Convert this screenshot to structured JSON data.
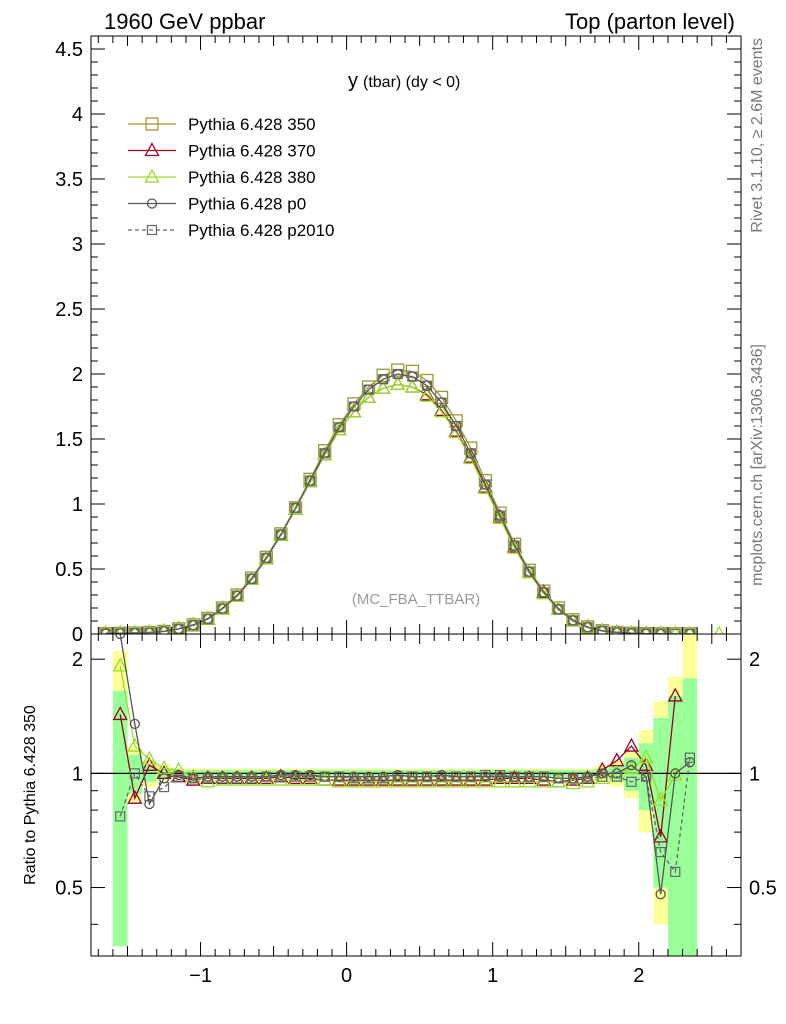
{
  "header": {
    "left": "1960 GeV ppbar",
    "right": "Top (parton level)"
  },
  "side": {
    "rivet": "Rivet 3.1.10, ≥ 2.6M events",
    "mcplots": "mcplots.cern.ch [arXiv:1306.3436]"
  },
  "chart_data": [
    {
      "type": "line",
      "title": "y (tbar) (dy < 0)",
      "title_main": "y",
      "title_rest": "(tbar) (dy < 0)",
      "tag": "(MC_FBA_TTBAR)",
      "xlim": [
        -1.75,
        2.7
      ],
      "ylim": [
        0,
        4.6
      ],
      "yticks": [
        "0",
        "0.5",
        "1",
        "1.5",
        "2",
        "2.5",
        "3",
        "3.5",
        "4",
        "4.5"
      ],
      "grid": false,
      "legend_position": "top-left",
      "x": [
        -1.65,
        -1.55,
        -1.45,
        -1.35,
        -1.25,
        -1.15,
        -1.05,
        -0.95,
        -0.85,
        -0.75,
        -0.65,
        -0.55,
        -0.45,
        -0.35,
        -0.25,
        -0.15,
        -0.05,
        0.05,
        0.15,
        0.25,
        0.35,
        0.45,
        0.55,
        0.65,
        0.75,
        0.85,
        0.95,
        1.05,
        1.15,
        1.25,
        1.35,
        1.45,
        1.55,
        1.65,
        1.75,
        1.85,
        1.95,
        2.05,
        2.15,
        2.25,
        2.35,
        2.45,
        2.55
      ],
      "series": [
        {
          "name": "Pythia 6.428 350",
          "color": "#999933",
          "marker": "square",
          "dash": false,
          "values": [
            0.003,
            0.005,
            0.008,
            0.012,
            0.02,
            0.04,
            0.07,
            0.12,
            0.2,
            0.3,
            0.43,
            0.59,
            0.77,
            0.97,
            1.19,
            1.41,
            1.61,
            1.77,
            1.9,
            1.99,
            2.03,
            2.02,
            1.95,
            1.82,
            1.64,
            1.43,
            1.18,
            0.93,
            0.69,
            0.49,
            0.33,
            0.2,
            0.11,
            0.055,
            0.025,
            0.012,
            0.006,
            0.003,
            0.002,
            0.002,
            0.001,
            null,
            null
          ]
        },
        {
          "name": "Pythia 6.428 370",
          "color": "#990022",
          "marker": "triangle",
          "dash": false,
          "values": [
            0.004,
            0.004,
            0.008,
            0.012,
            0.02,
            0.04,
            0.07,
            0.115,
            0.195,
            0.29,
            0.42,
            0.58,
            0.76,
            0.96,
            1.17,
            1.38,
            1.57,
            1.71,
            1.82,
            1.89,
            1.92,
            1.9,
            1.84,
            1.72,
            1.56,
            1.36,
            1.13,
            0.9,
            0.67,
            0.47,
            0.32,
            0.19,
            0.1,
            0.052,
            0.024,
            0.013,
            0.006,
            0.003,
            0.002,
            0.003,
            null,
            null,
            null
          ]
        },
        {
          "name": "Pythia 6.428 380",
          "color": "#99dd22",
          "marker": "triangle",
          "dash": false,
          "values": [
            0.006,
            0.006,
            0.009,
            0.012,
            0.02,
            0.04,
            0.068,
            0.115,
            0.192,
            0.29,
            0.42,
            0.58,
            0.76,
            0.96,
            1.17,
            1.38,
            1.57,
            1.71,
            1.82,
            1.89,
            1.92,
            1.9,
            1.83,
            1.71,
            1.55,
            1.35,
            1.12,
            0.89,
            0.66,
            0.47,
            0.31,
            0.19,
            0.1,
            0.05,
            0.024,
            0.012,
            0.006,
            0.003,
            0.002,
            0.002,
            0.001,
            null,
            0.001
          ]
        },
        {
          "name": "Pythia 6.428 p0",
          "color": "#555555",
          "marker": "circle",
          "dash": false,
          "values": [
            0.007,
            0.007,
            0.008,
            0.011,
            0.02,
            0.039,
            0.068,
            0.117,
            0.196,
            0.295,
            0.425,
            0.585,
            0.765,
            0.97,
            1.18,
            1.39,
            1.59,
            1.75,
            1.88,
            1.96,
            2.0,
            1.98,
            1.91,
            1.78,
            1.6,
            1.39,
            1.15,
            0.91,
            0.68,
            0.48,
            0.32,
            0.19,
            0.105,
            0.052,
            0.024,
            0.013,
            0.006,
            0.003,
            0.001,
            null,
            0.001,
            null,
            null
          ]
        },
        {
          "name": "Pythia 6.428 p2010",
          "color": "#666666",
          "marker": "square-small",
          "dash": true,
          "values": [
            0.002,
            0.005,
            0.007,
            0.011,
            0.02,
            0.039,
            0.068,
            0.117,
            0.196,
            0.295,
            0.425,
            0.585,
            0.765,
            0.97,
            1.18,
            1.39,
            1.59,
            1.75,
            1.88,
            1.96,
            2.0,
            1.98,
            1.91,
            1.78,
            1.6,
            1.39,
            1.15,
            0.91,
            0.68,
            0.48,
            0.32,
            0.19,
            0.105,
            0.052,
            0.024,
            0.012,
            0.006,
            0.003,
            0.002,
            0.001,
            0.001,
            null,
            null
          ]
        }
      ]
    },
    {
      "type": "line",
      "ylabel": "Ratio to Pythia 6.428 350",
      "xlim": [
        -1.75,
        2.7
      ],
      "ylim": [
        0.33,
        2.33
      ],
      "xticks": [
        "−1",
        "0",
        "1",
        "2"
      ],
      "yticks": [
        "0.5",
        "1",
        "2"
      ],
      "reference_line": 1,
      "band_bins": [
        {
          "x0": -1.6,
          "x1": -1.5,
          "yellow": [
            0.35,
            2.1
          ],
          "green": [
            0.35,
            1.65
          ]
        },
        {
          "x0": -1.5,
          "x1": -1.4,
          "yellow": [
            0.84,
            1.17
          ],
          "green": [
            0.88,
            1.12
          ]
        },
        {
          "x0": -1.4,
          "x1": -1.3,
          "yellow": [
            0.92,
            1.08
          ],
          "green": [
            0.95,
            1.05
          ]
        },
        {
          "x0": -1.3,
          "x1": -1.2,
          "yellow": [
            0.95,
            1.05
          ],
          "green": [
            0.97,
            1.03
          ]
        },
        {
          "x0": -1.2,
          "x1": 1.7,
          "yellow": [
            0.97,
            1.03
          ],
          "green": [
            0.98,
            1.02
          ]
        },
        {
          "x0": 1.7,
          "x1": 1.8,
          "yellow": [
            0.95,
            1.05
          ],
          "green": [
            0.97,
            1.03
          ]
        },
        {
          "x0": 1.8,
          "x1": 1.9,
          "yellow": [
            0.92,
            1.08
          ],
          "green": [
            0.95,
            1.05
          ]
        },
        {
          "x0": 1.9,
          "x1": 2.0,
          "yellow": [
            0.86,
            1.14
          ],
          "green": [
            0.9,
            1.1
          ]
        },
        {
          "x0": 2.0,
          "x1": 2.1,
          "yellow": [
            0.7,
            1.3
          ],
          "green": [
            0.8,
            1.2
          ]
        },
        {
          "x0": 2.1,
          "x1": 2.2,
          "yellow": [
            0.4,
            1.55
          ],
          "green": [
            0.5,
            1.4
          ]
        },
        {
          "x0": 2.2,
          "x1": 2.3,
          "yellow": [
            0.33,
            1.8
          ],
          "green": [
            0.33,
            1.6
          ]
        },
        {
          "x0": 2.3,
          "x1": 2.4,
          "yellow": [
            0.33,
            2.33
          ],
          "green": [
            0.33,
            1.78
          ]
        }
      ],
      "x": [
        -1.55,
        -1.45,
        -1.35,
        -1.25,
        -1.15,
        -1.05,
        -0.95,
        -0.85,
        -0.75,
        -0.65,
        -0.55,
        -0.45,
        -0.35,
        -0.25,
        -0.15,
        -0.05,
        0.05,
        0.15,
        0.25,
        0.35,
        0.45,
        0.55,
        0.65,
        0.75,
        0.85,
        0.95,
        1.05,
        1.15,
        1.25,
        1.35,
        1.45,
        1.55,
        1.65,
        1.75,
        1.85,
        1.95,
        2.05,
        2.15,
        2.25,
        2.35
      ],
      "series": [
        {
          "name": "Pythia 6.428 370",
          "color": "#990022",
          "marker": "triangle",
          "dash": false,
          "values": [
            1.43,
            0.86,
            1.05,
            1.0,
            0.98,
            0.96,
            0.97,
            0.97,
            0.97,
            0.97,
            0.97,
            0.98,
            0.97,
            0.97,
            0.96,
            0.96,
            0.96,
            0.96,
            0.96,
            0.96,
            0.96,
            0.96,
            0.96,
            0.96,
            0.96,
            0.96,
            0.97,
            0.97,
            0.97,
            0.96,
            0.95,
            0.96,
            0.97,
            1.02,
            1.08,
            1.18,
            1.05,
            0.68,
            1.6,
            null
          ]
        },
        {
          "name": "Pythia 6.428 380",
          "color": "#99dd22",
          "marker": "triangle",
          "dash": false,
          "values": [
            1.92,
            1.18,
            1.09,
            1.03,
            1.02,
            0.98,
            0.95,
            0.96,
            0.96,
            0.96,
            0.96,
            0.96,
            0.96,
            0.96,
            0.96,
            0.95,
            0.95,
            0.95,
            0.95,
            0.95,
            0.95,
            0.95,
            0.95,
            0.95,
            0.95,
            0.95,
            0.95,
            0.95,
            0.95,
            0.95,
            0.95,
            0.94,
            0.95,
            0.97,
            1.0,
            1.03,
            1.1,
            0.85,
            0.99,
            null
          ]
        },
        {
          "name": "Pythia 6.428 p0",
          "color": "#555555",
          "marker": "circle",
          "dash": false,
          "values": [
            2.35,
            1.35,
            0.83,
            0.97,
            0.99,
            0.97,
            0.98,
            0.98,
            0.98,
            0.98,
            0.98,
            0.99,
            0.99,
            0.99,
            0.98,
            0.98,
            0.98,
            0.98,
            0.98,
            0.99,
            0.98,
            0.98,
            0.99,
            0.98,
            0.98,
            0.98,
            0.98,
            0.98,
            0.98,
            0.98,
            0.97,
            0.97,
            0.98,
            1.0,
            1.0,
            1.05,
            0.98,
            0.48,
            1.0,
            1.07
          ]
        },
        {
          "name": "Pythia 6.428 p2010",
          "color": "#666666",
          "marker": "square-small",
          "dash": true,
          "values": [
            0.77,
            1.0,
            0.87,
            0.92,
            0.98,
            0.97,
            0.97,
            0.97,
            0.97,
            0.97,
            0.98,
            0.98,
            0.98,
            0.98,
            0.98,
            0.98,
            0.97,
            0.97,
            0.97,
            0.98,
            0.98,
            0.98,
            0.98,
            0.98,
            0.98,
            0.99,
            0.99,
            0.98,
            0.98,
            0.98,
            0.97,
            0.97,
            0.97,
            0.98,
            0.98,
            0.95,
            0.98,
            0.62,
            0.55,
            1.1
          ]
        }
      ]
    }
  ]
}
